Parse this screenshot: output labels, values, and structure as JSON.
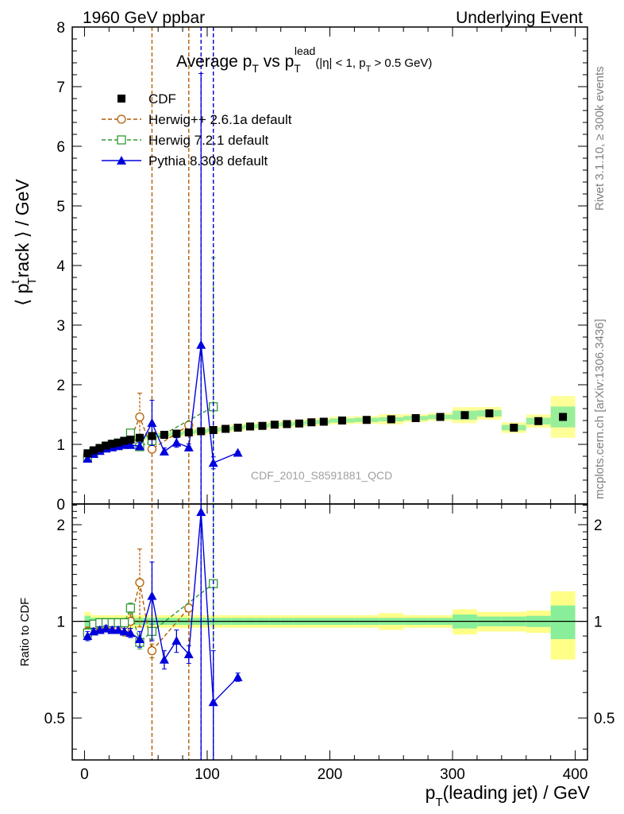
{
  "header": {
    "left": "1960 GeV ppbar",
    "right": "Underlying Event"
  },
  "side": {
    "rivet": "Rivet 3.1.10, ≥ 300k events",
    "mcplots": "mcplots.cern.ch [arXiv:1306.3436]"
  },
  "chart_data": {
    "type": "scatter",
    "title": "Average pT vs pTlead (|η| < 1, pT > 0.5 GeV)",
    "title_parts": {
      "main": "Average p",
      "sub1": "T",
      "mid": " vs p",
      "sub2": "T",
      "sup2": "lead",
      "tail": "(|η| < 1, p",
      "sub3": "T",
      "tail2": " > 0.5 GeV)"
    },
    "watermark": "CDF_2010_S8591881_QCD",
    "ylabel_parts": {
      "pre": "⟨ p",
      "sup": "t",
      "sub": "T",
      "post": "rack ⟩ / GeV"
    },
    "ratio_ylabel": "Ratio to CDF",
    "xlabel_parts": {
      "pre": "p",
      "sub": "T",
      "post": "(leading jet) / GeV"
    },
    "xlim": [
      -10,
      410
    ],
    "ylim": [
      0,
      8
    ],
    "ratio_ylim": [
      0.37,
      2.32
    ],
    "x_ticks": [
      "0",
      "100",
      "200",
      "300",
      "400"
    ],
    "x_tick_values": [
      0,
      100,
      200,
      300,
      400
    ],
    "y_ticks": [
      "0",
      "1",
      "2",
      "3",
      "4",
      "5",
      "6",
      "7",
      "8"
    ],
    "y_tick_values": [
      0,
      1,
      2,
      3,
      4,
      5,
      6,
      7,
      8
    ],
    "ratio_ticks": [
      "0.5",
      "1",
      "2"
    ],
    "ratio_tick_values": [
      0.5,
      1,
      2
    ],
    "legend_position": "top-left",
    "series": [
      {
        "name": "CDF",
        "color": "#000000",
        "marker": "square-filled",
        "x": [
          2.5,
          7.5,
          12.5,
          17.5,
          22.5,
          27.5,
          32.5,
          37.5,
          45,
          55,
          65,
          75,
          85,
          95,
          105,
          115,
          125,
          135,
          145,
          155,
          165,
          175,
          185,
          195,
          210,
          230,
          250,
          270,
          290,
          310,
          330,
          350,
          370,
          390
        ],
        "y": [
          0.85,
          0.9,
          0.94,
          0.98,
          1.01,
          1.03,
          1.06,
          1.08,
          1.11,
          1.14,
          1.16,
          1.18,
          1.2,
          1.22,
          1.24,
          1.26,
          1.28,
          1.3,
          1.31,
          1.33,
          1.34,
          1.35,
          1.37,
          1.38,
          1.4,
          1.41,
          1.42,
          1.44,
          1.46,
          1.49,
          1.52,
          1.28,
          1.39,
          1.46
        ],
        "band_inner": [
          0.04,
          0.025,
          0.025,
          0.025,
          0.025,
          0.025,
          0.025,
          0.025,
          0.025,
          0.025,
          0.025,
          0.025,
          0.025,
          0.025,
          0.025,
          0.025,
          0.025,
          0.025,
          0.025,
          0.025,
          0.025,
          0.025,
          0.025,
          0.025,
          0.025,
          0.025,
          0.025,
          0.025,
          0.025,
          0.05,
          0.035,
          0.035,
          0.04,
          0.12
        ],
        "band_outer": [
          0.07,
          0.045,
          0.045,
          0.045,
          0.045,
          0.045,
          0.045,
          0.045,
          0.045,
          0.045,
          0.045,
          0.045,
          0.045,
          0.045,
          0.045,
          0.045,
          0.045,
          0.045,
          0.045,
          0.045,
          0.045,
          0.045,
          0.045,
          0.045,
          0.045,
          0.045,
          0.06,
          0.045,
          0.045,
          0.09,
          0.07,
          0.07,
          0.08,
          0.24
        ],
        "bin_edges": [
          0,
          5,
          10,
          15,
          20,
          25,
          30,
          35,
          40,
          50,
          60,
          70,
          80,
          90,
          100,
          110,
          120,
          130,
          140,
          150,
          160,
          170,
          180,
          190,
          200,
          220,
          240,
          260,
          280,
          300,
          320,
          340,
          360,
          380,
          400
        ]
      },
      {
        "name": "Herwig++ 2.6.1a default",
        "color": "#b35c00",
        "marker": "circle-open",
        "dash": "5,3",
        "x": [
          2.5,
          7.5,
          12.5,
          17.5,
          22.5,
          27.5,
          32.5,
          37.5,
          45,
          55,
          85
        ],
        "y": [
          0.79,
          0.86,
          0.91,
          0.95,
          0.98,
          0.98,
          1.0,
          1.08,
          1.46,
          0.92,
          1.32
        ],
        "err": [
          0.03,
          0.02,
          0.02,
          0.02,
          0.02,
          0.03,
          0.04,
          0.06,
          0.4,
          0.05,
          0.04
        ],
        "ratio": [
          0.93,
          0.96,
          0.97,
          0.97,
          0.97,
          0.95,
          0.94,
          1.0,
          1.32,
          0.81,
          1.1
        ],
        "ratio_err": [
          0.03,
          0.02,
          0.02,
          0.02,
          0.02,
          0.03,
          0.04,
          0.05,
          0.36,
          0.04,
          0.03
        ],
        "vlines": [
          55,
          85
        ]
      },
      {
        "name": "Herwig 7.2.1 default",
        "color": "#339933",
        "marker": "square-open",
        "dash": "5,3",
        "x": [
          2.5,
          7.5,
          12.5,
          17.5,
          22.5,
          27.5,
          32.5,
          37.5,
          45,
          55,
          105
        ],
        "y": [
          0.78,
          0.88,
          0.93,
          0.97,
          1.0,
          1.02,
          1.05,
          1.19,
          0.96,
          1.06,
          1.63
        ],
        "err": [
          0.03,
          0.02,
          0.02,
          0.02,
          0.02,
          0.02,
          0.03,
          0.05,
          0.05,
          0.06,
          2.5
        ],
        "ratio": [
          0.92,
          0.98,
          0.99,
          0.99,
          0.99,
          0.99,
          0.99,
          1.1,
          0.86,
          0.93,
          1.31
        ],
        "ratio_err": [
          0.03,
          0.02,
          0.02,
          0.02,
          0.02,
          0.02,
          0.03,
          0.04,
          0.04,
          0.05,
          2.0
        ],
        "vlines": [
          105
        ]
      },
      {
        "name": "Pythia 8.308 default",
        "color": "#0000dd",
        "marker": "triangle-filled",
        "x": [
          2.5,
          7.5,
          12.5,
          17.5,
          22.5,
          27.5,
          32.5,
          37.5,
          45,
          55,
          65,
          75,
          85,
          95,
          105,
          125
        ],
        "y": [
          0.76,
          0.84,
          0.89,
          0.93,
          0.95,
          0.97,
          0.99,
          0.99,
          0.97,
          1.36,
          0.88,
          1.03,
          0.95,
          2.67,
          0.69,
          0.86
        ],
        "err": [
          0.03,
          0.02,
          0.02,
          0.02,
          0.02,
          0.02,
          0.02,
          0.03,
          0.06,
          0.38,
          0.06,
          0.08,
          0.06,
          4.55,
          0.1,
          0.02
        ],
        "ratio": [
          0.9,
          0.93,
          0.94,
          0.95,
          0.94,
          0.94,
          0.93,
          0.92,
          0.88,
          1.2,
          0.76,
          0.87,
          0.79,
          2.19,
          0.56,
          0.67
        ],
        "ratio_err": [
          0.03,
          0.02,
          0.02,
          0.02,
          0.02,
          0.02,
          0.02,
          0.03,
          0.05,
          0.33,
          0.05,
          0.07,
          0.05,
          3.7,
          0.25,
          0.02
        ],
        "vlines": [
          95,
          105
        ]
      }
    ]
  }
}
